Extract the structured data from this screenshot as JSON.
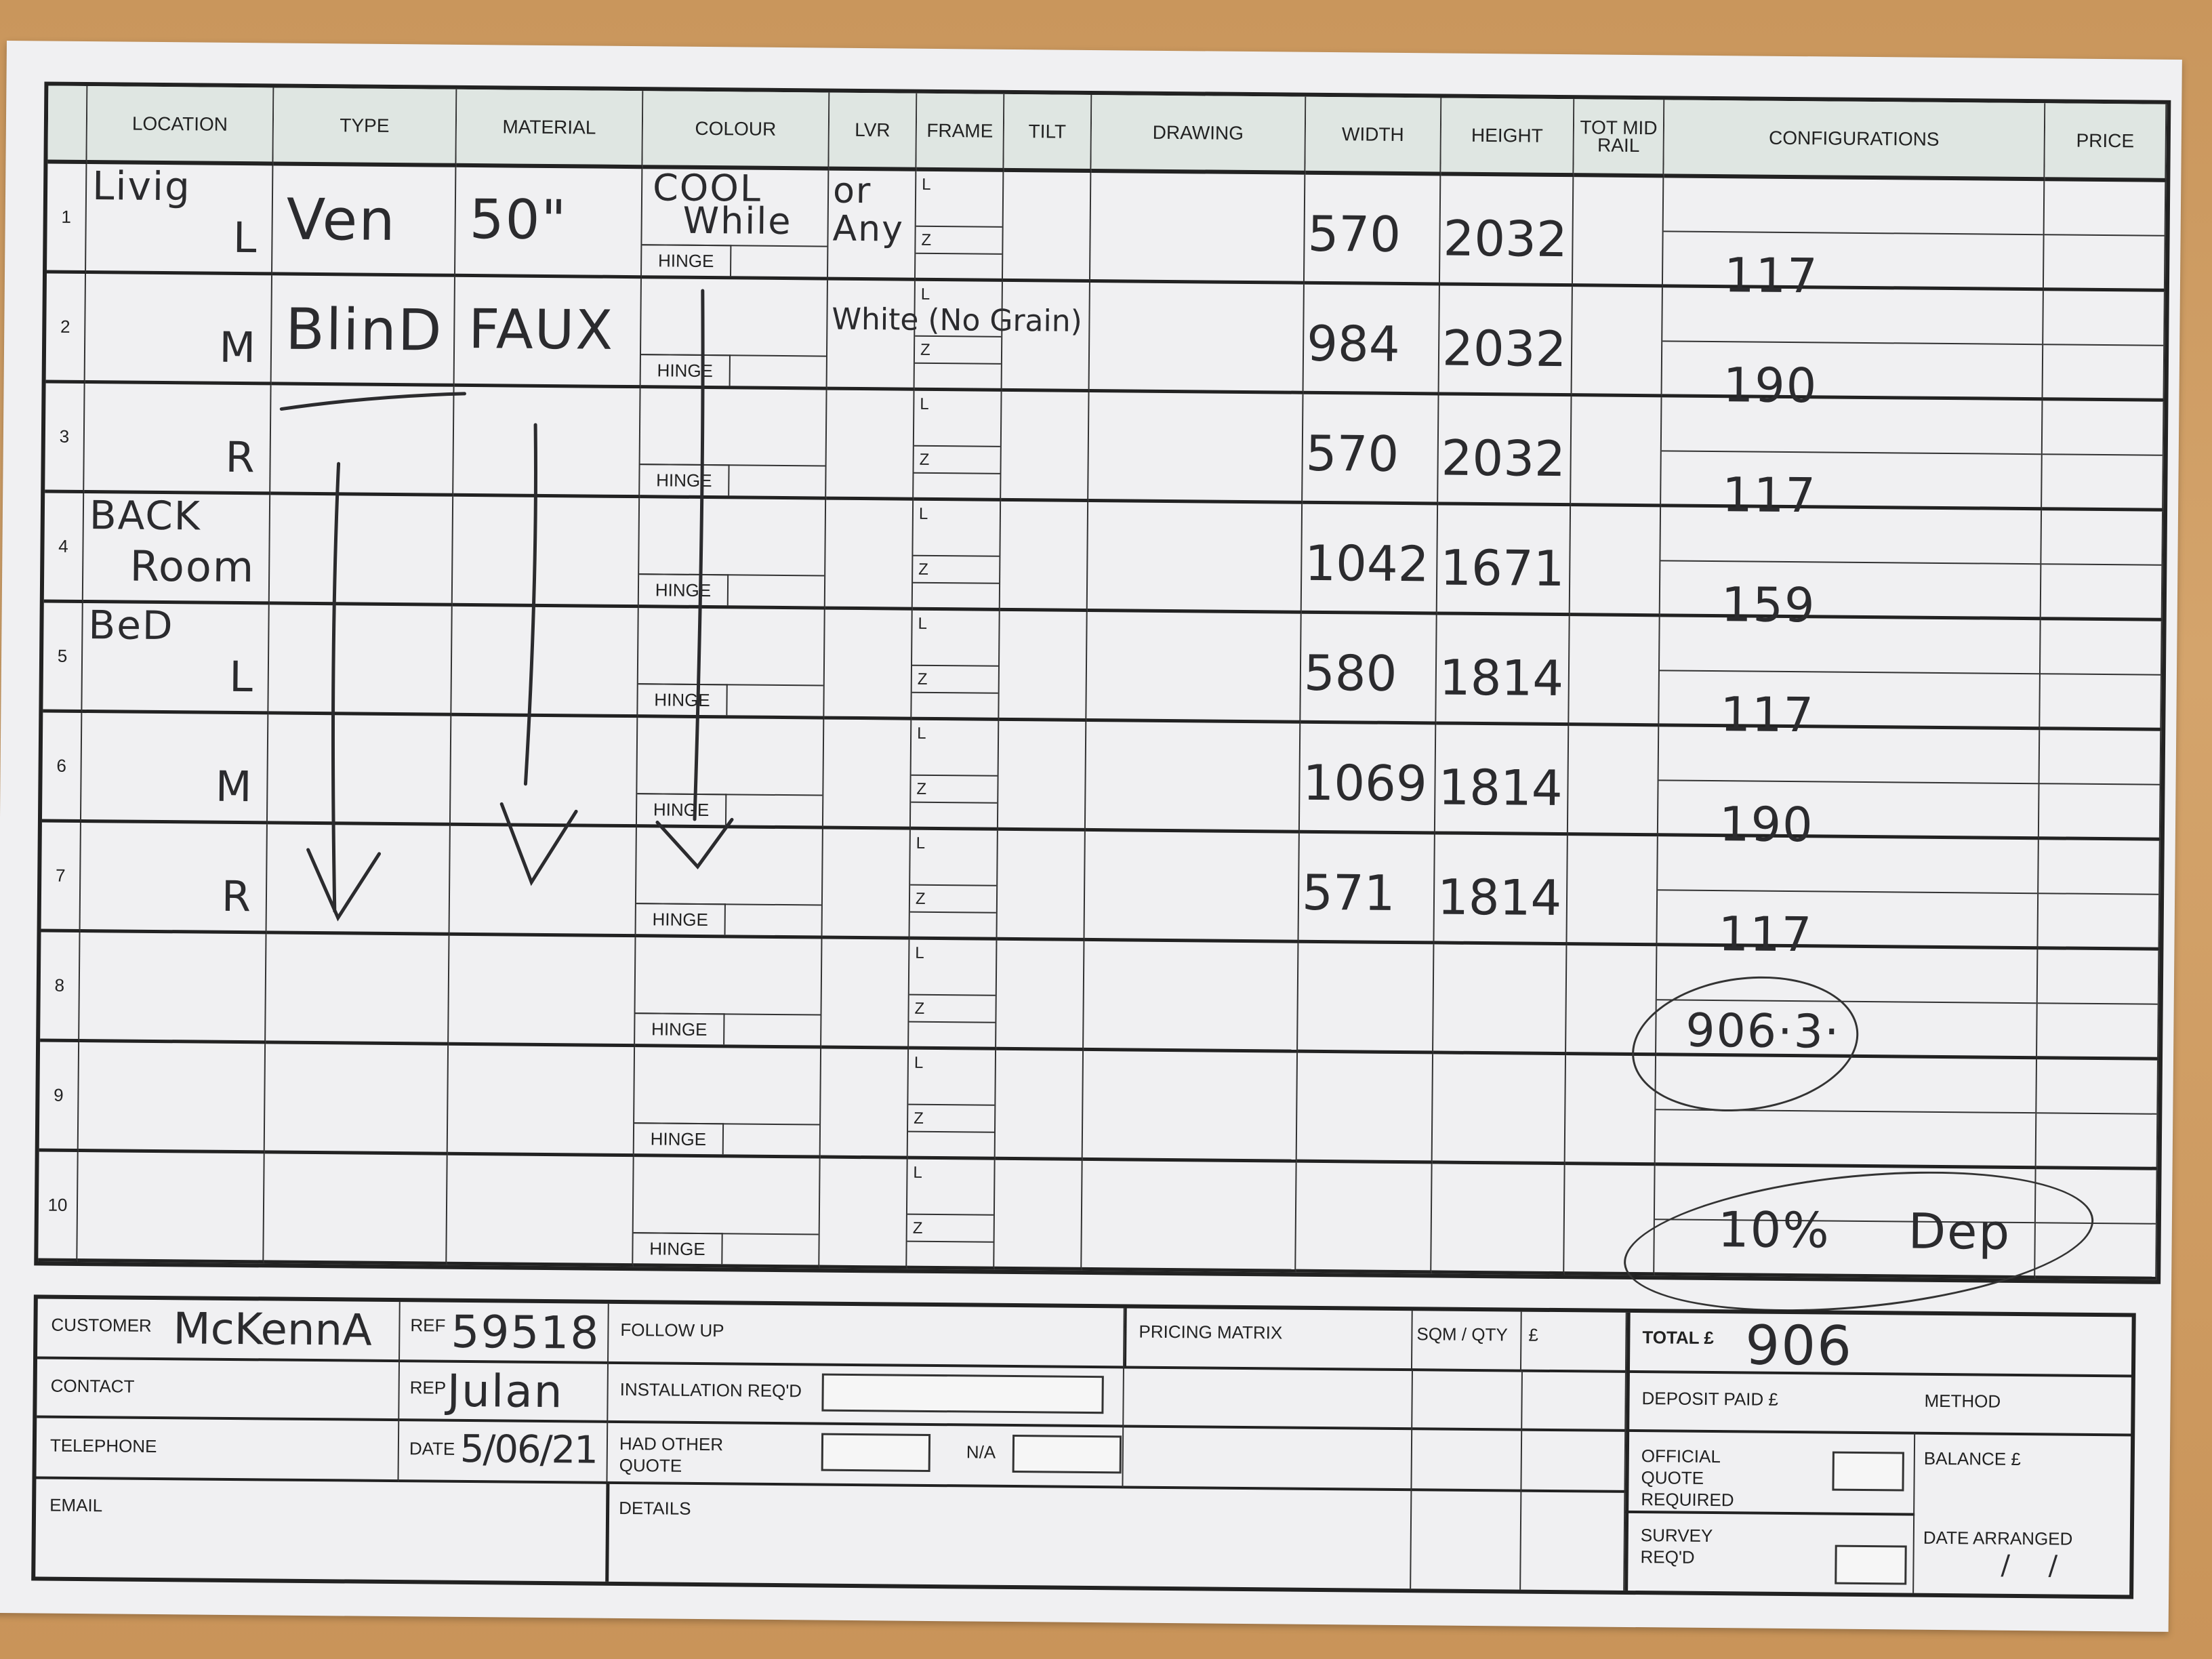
{
  "headers": [
    "",
    "LOCATION",
    "TYPE",
    "MATERIAL",
    "COLOUR",
    "LVR",
    "FRAME",
    "TILT",
    "DRAWING",
    "WIDTH",
    "HEIGHT",
    "TOT MID RAIL",
    "CONFIGURATIONS",
    "PRICE"
  ],
  "labels": {
    "hinge": "HINGE",
    "frame_top": "L",
    "frame_bottom": "Z"
  },
  "rows": [
    {
      "num": "1",
      "location": "Livig",
      "location2": "L",
      "type": "Ven",
      "material": "50\"",
      "colour": "COOL",
      "colour2": "While",
      "lvr": "or",
      "lvr2": "Any",
      "width": "570",
      "height": "2032",
      "config": ""
    },
    {
      "num": "2",
      "location": "",
      "location2": "M",
      "type": "BlinD",
      "material": "FAUX",
      "colour": "",
      "colour2": "",
      "lvr": "White (No Grain)",
      "lvr2": "",
      "width": "984",
      "height": "2032",
      "config": "117"
    },
    {
      "num": "3",
      "location": "",
      "location2": "R",
      "type": "",
      "material": "",
      "colour": "",
      "colour2": "",
      "lvr": "",
      "lvr2": "",
      "width": "570",
      "height": "2032",
      "config": "190"
    },
    {
      "num": "4",
      "location": "BACK",
      "location2": "Room",
      "type": "",
      "material": "",
      "colour": "",
      "colour2": "",
      "lvr": "",
      "lvr2": "",
      "width": "1042",
      "height": "1671",
      "config": "117"
    },
    {
      "num": "5",
      "location": "BeD",
      "location2": "L",
      "type": "",
      "material": "",
      "colour": "",
      "colour2": "",
      "lvr": "",
      "lvr2": "",
      "width": "580",
      "height": "1814",
      "config": "159"
    },
    {
      "num": "6",
      "location": "",
      "location2": "M",
      "type": "",
      "material": "",
      "colour": "",
      "colour2": "",
      "lvr": "",
      "lvr2": "",
      "width": "1069",
      "height": "1814",
      "config": "117"
    },
    {
      "num": "7",
      "location": "",
      "location2": "R",
      "type": "",
      "material": "",
      "colour": "",
      "colour2": "",
      "lvr": "",
      "lvr2": "",
      "width": "571",
      "height": "1814",
      "config": "190"
    },
    {
      "num": "8",
      "location": "",
      "location2": "",
      "type": "",
      "material": "",
      "colour": "",
      "colour2": "",
      "lvr": "",
      "lvr2": "",
      "width": "",
      "height": "",
      "config": "117"
    },
    {
      "num": "9",
      "location": "",
      "location2": "",
      "type": "",
      "material": "",
      "colour": "",
      "colour2": "",
      "lvr": "",
      "lvr2": "",
      "width": "",
      "height": "",
      "config": ""
    },
    {
      "num": "10",
      "location": "",
      "location2": "",
      "type": "",
      "material": "",
      "colour": "",
      "colour2": "",
      "lvr": "",
      "lvr2": "",
      "width": "",
      "height": "",
      "config": ""
    }
  ],
  "notes": {
    "subtotal": "906·3·",
    "deposit": "10% Dep"
  },
  "footer": {
    "customer_label": "CUSTOMER",
    "customer": "McKennA",
    "ref_label": "REF",
    "ref": "59518",
    "contact_label": "CONTACT",
    "rep_label": "REP",
    "rep": "Julan",
    "telephone_label": "TELEPHONE",
    "date_label": "DATE",
    "date": "5/06/21",
    "email_label": "EMAIL",
    "follow_up_label": "FOLLOW UP",
    "installation_label": "INSTALLATION REQ'D",
    "had_other_quote_label": "HAD OTHER QUOTE",
    "na_label": "N/A",
    "details_label": "DETAILS",
    "pricing_matrix_label": "PRICING MATRIX",
    "sqm_qty_label": "SQM / QTY",
    "pound_label": "£",
    "total_label": "TOTAL £",
    "total": "906",
    "deposit_label": "DEPOSIT PAID £",
    "method_label": "METHOD",
    "official_quote_label": "OFFICIAL QUOTE REQUIRED",
    "balance_label": "BALANCE £",
    "survey_label": "SURVEY REQ'D",
    "date_arranged_label": "DATE ARRANGED",
    "date_arranged": "/  /"
  }
}
